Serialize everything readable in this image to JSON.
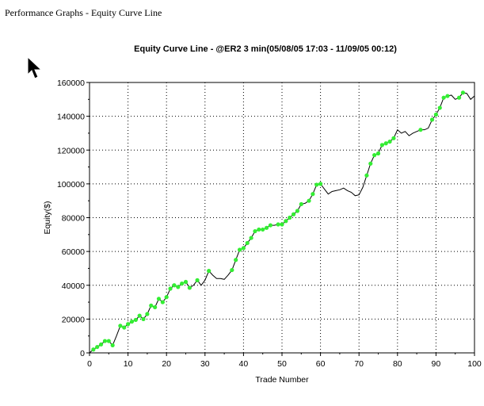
{
  "window": {
    "title": "Performance Graphs - Equity Curve Line"
  },
  "colors": {
    "line": "#000000",
    "marker": "#33ee33",
    "grid": "#000000",
    "background": "#ffffff"
  },
  "icons": {
    "cursor": "arrow-cursor-icon"
  },
  "chart_data": {
    "type": "line",
    "title": "Equity Curve Line - @ER2 3 min(05/08/05 17:03 - 11/09/05 00:12)",
    "xlabel": "Trade Number",
    "ylabel": "Equity($)",
    "xlim": [
      0,
      100
    ],
    "ylim": [
      0,
      160000
    ],
    "xticks": [
      0,
      10,
      20,
      30,
      40,
      50,
      60,
      70,
      80,
      90,
      100
    ],
    "yticks": [
      0,
      20000,
      40000,
      60000,
      80000,
      100000,
      120000,
      140000,
      160000
    ],
    "grid": true,
    "legend": "none",
    "series": [
      {
        "x": [
          0,
          1,
          2,
          3,
          4,
          5,
          6,
          7,
          8,
          9,
          10,
          11,
          12,
          13,
          14,
          15,
          16,
          17,
          18,
          19,
          20,
          21,
          22,
          23,
          24,
          25,
          26,
          27,
          28,
          29,
          30,
          31,
          32,
          33,
          34,
          35,
          36,
          37,
          38,
          39,
          40,
          41,
          42,
          43,
          44,
          45,
          46,
          47,
          48,
          49,
          50,
          51,
          52,
          53,
          54,
          55,
          56,
          57,
          58,
          59,
          60,
          61,
          62,
          63,
          64,
          65,
          66,
          67,
          68,
          69,
          70,
          71,
          72,
          73,
          74,
          75,
          76,
          77,
          78,
          79,
          80,
          81,
          82,
          83,
          84,
          85,
          86,
          87,
          88,
          89,
          90,
          91,
          92,
          93,
          94,
          95,
          96,
          97,
          98,
          99,
          100
        ],
        "y": [
          0,
          2000,
          3500,
          5000,
          7000,
          7000,
          4500,
          10000,
          16000,
          15000,
          17000,
          18500,
          19500,
          22000,
          20000,
          23000,
          28000,
          27000,
          32000,
          30000,
          33000,
          38000,
          40000,
          39000,
          41000,
          42000,
          38500,
          40000,
          43000,
          40000,
          43000,
          48500,
          46000,
          44000,
          44000,
          43500,
          46000,
          49000,
          55000,
          61000,
          62000,
          65000,
          68000,
          72000,
          73000,
          73000,
          74000,
          75500,
          75500,
          76000,
          76000,
          78000,
          80000,
          82000,
          84000,
          88000,
          88500,
          90000,
          94000,
          99500,
          100000,
          97000,
          94000,
          95500,
          96000,
          96500,
          97500,
          96000,
          95000,
          93000,
          93500,
          98000,
          105000,
          112000,
          117000,
          118000,
          123000,
          124000,
          125000,
          127000,
          132000,
          130000,
          131000,
          128500,
          130000,
          131000,
          132000,
          132000,
          133000,
          138000,
          141000,
          145000,
          151000,
          152000,
          152500,
          150000,
          151000,
          154000,
          153500,
          150000,
          152000
        ],
        "markers": [
          1,
          2,
          3,
          4,
          5,
          6,
          8,
          9,
          10,
          11,
          12,
          13,
          14,
          15,
          16,
          17,
          18,
          19,
          20,
          21,
          22,
          23,
          24,
          25,
          26,
          28,
          31,
          37,
          38,
          39,
          40,
          41,
          42,
          43,
          44,
          45,
          46,
          47,
          49,
          50,
          51,
          52,
          53,
          54,
          55,
          57,
          58,
          59,
          60,
          72,
          73,
          74,
          75,
          76,
          77,
          78,
          79,
          86,
          89,
          90,
          91,
          92,
          93,
          96,
          97
        ]
      }
    ]
  }
}
